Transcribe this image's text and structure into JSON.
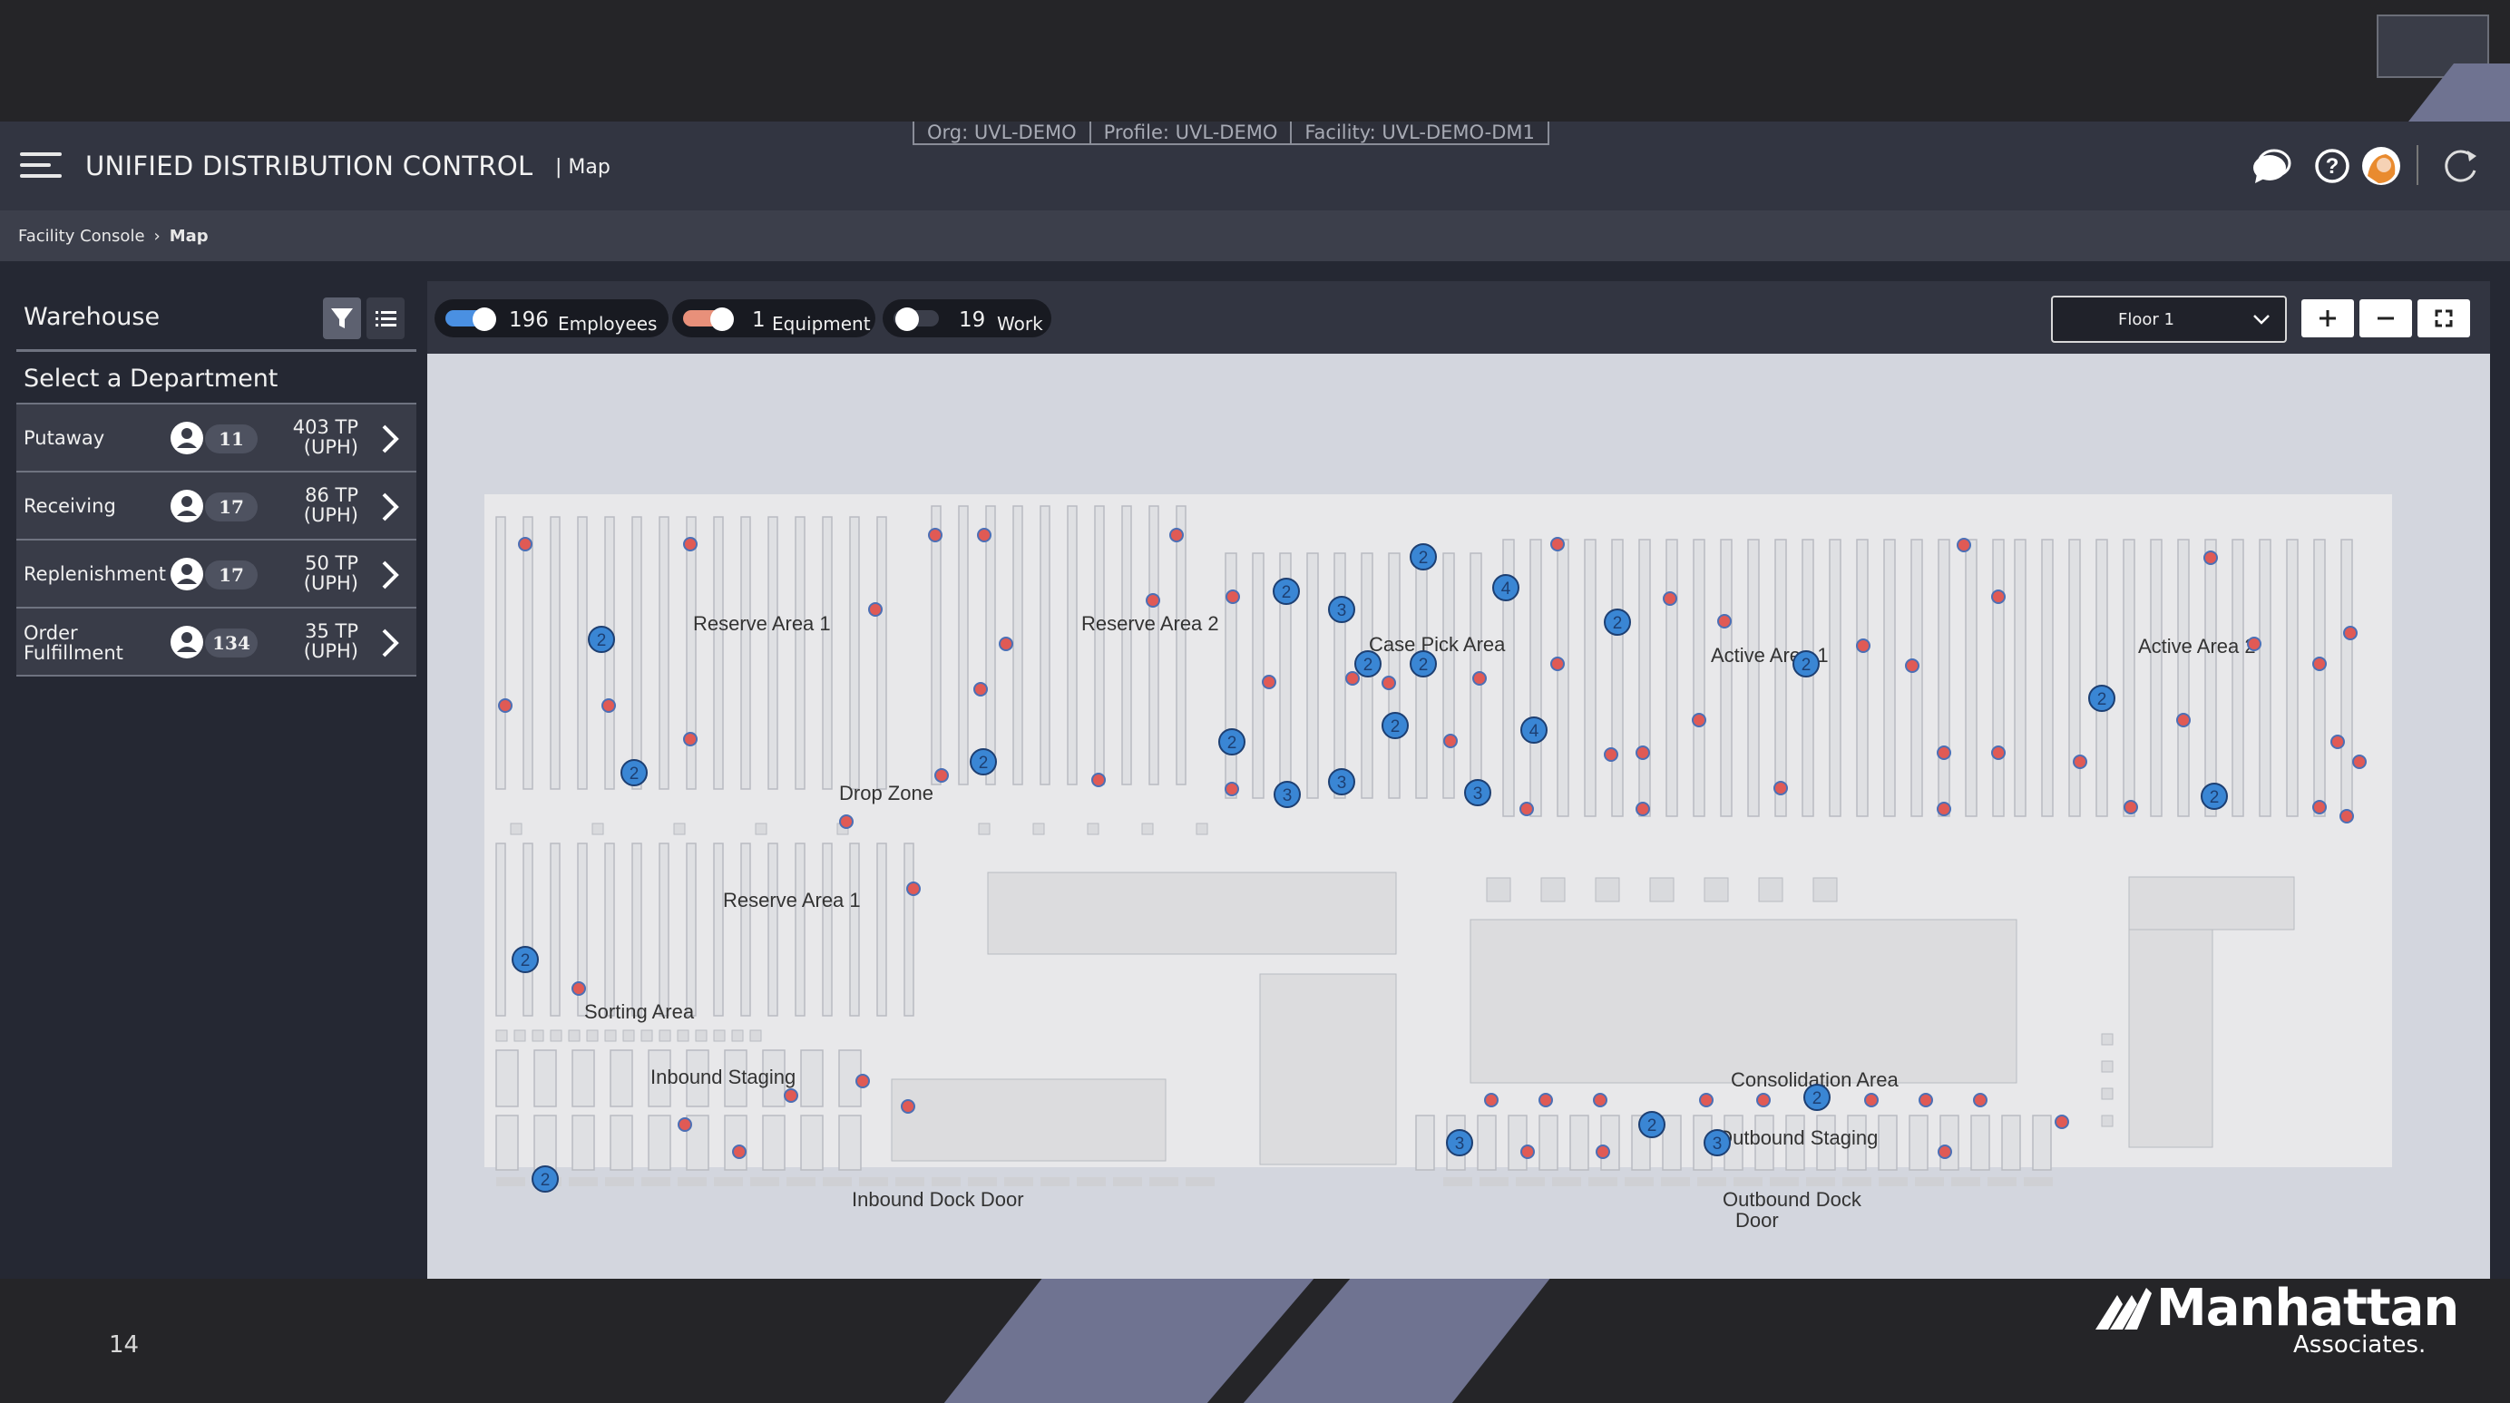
{
  "header": {
    "title": "UNIFIED DISTRIBUTION CONTROL",
    "subtitle": "| Map",
    "context": [
      "Org: UVL-DEMO",
      "Profile: UVL-DEMO",
      "Facility: UVL-DEMO-DM1"
    ]
  },
  "breadcrumb": {
    "parent": "Facility Console",
    "separator": "›",
    "current": "Map"
  },
  "sidebar": {
    "title": "Warehouse",
    "subtitle": "Select a Department",
    "departments": [
      {
        "name": "Putaway",
        "count": "11",
        "tp": "403 TP",
        "unit": "(UPH)"
      },
      {
        "name": "Receiving",
        "count": "17",
        "tp": "86 TP",
        "unit": "(UPH)"
      },
      {
        "name": "Replenishment",
        "count": "17",
        "tp": "50 TP",
        "unit": "(UPH)"
      },
      {
        "name": "Order",
        "name2": "Fulfillment",
        "count": "134",
        "tp": "35 TP",
        "unit": "(UPH)"
      }
    ]
  },
  "toolbar": {
    "toggles": [
      {
        "count": "196",
        "label": "Employees",
        "on": true,
        "color": "#4a90e2"
      },
      {
        "count": "1",
        "label": "Equipment",
        "on": true,
        "color": "#e8907a"
      },
      {
        "count": "19",
        "label": "Work",
        "on": false,
        "color": "#3b3e4a"
      }
    ],
    "floor": "Floor 1",
    "zoom": {
      "in": "+",
      "out": "−"
    }
  },
  "map": {
    "labels": {
      "reserve1": "Reserve Area 1",
      "reserve2": "Reserve Area 2",
      "casepick": "Case Pick Area",
      "active1": "Active Area 1",
      "active2": "Active Area 2",
      "drop": "Drop Zone",
      "reserve1b": "Reserve Area 1",
      "sorting": "Sorting Area",
      "inbound_staging": "Inbound Staging",
      "inbound_dock": "Inbound Dock Door",
      "consolidation": "Consolidation Area",
      "outbound_staging": "Outbound Staging",
      "outbound_dock1": "Outbound Dock",
      "outbound_dock2": "Door"
    },
    "colors": {
      "employee": "#3a86d4",
      "work": "#e05a55"
    }
  },
  "footer": {
    "page": "14",
    "logo": "Manhattan",
    "logo_sub": "Associates."
  }
}
